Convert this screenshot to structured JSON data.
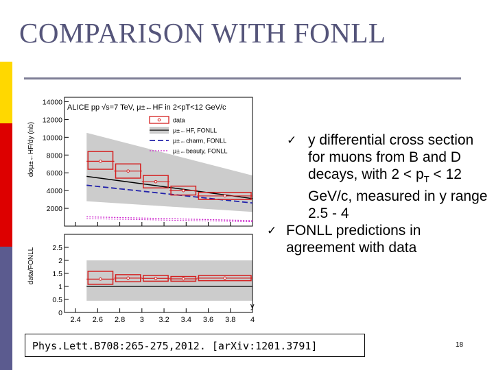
{
  "slide": {
    "title": "COMPARISON WITH FONLL",
    "sidebar_colors": [
      "#ffffff",
      "#ffd800",
      "#dd0000",
      "#5b5b8f"
    ],
    "bullets": [
      {
        "check": "✓",
        "parts": [
          "y differential cross section for muons from B and D decays, with 2 < p",
          "T",
          " < 12 GeV/c, measured in y range 2.5 - 4"
        ]
      },
      {
        "check": "✓",
        "parts": [
          "FONLL predictions in agreement with data",
          "",
          ""
        ]
      }
    ],
    "reference": "Phys.Lett.B708:265-275,2012. [arXiv:1201.3791]",
    "page_number": "18"
  },
  "chart_data": {
    "type": "line",
    "title": "ALICE pp √s=7 TeV, μ±←HF in 2<pT<12 GeV/c",
    "xlabel": "y",
    "colors": {
      "data": "#d42020",
      "hf": "#000000",
      "band": "#cccccc",
      "charm": "#2222aa",
      "beauty": "#cc22cc"
    },
    "upper": {
      "ylabel": "dσμ±←HF/dy (nb)",
      "ylim": [
        0,
        14500
      ],
      "yticks": [
        2000,
        4000,
        6000,
        8000,
        10000,
        12000,
        14000
      ],
      "ytick_labels": [
        "2000",
        "4000",
        "6000",
        "8000",
        "10000",
        "12000",
        "14000"
      ],
      "data": {
        "name": "data",
        "x_edges": [
          [
            2.5,
            2.75
          ],
          [
            2.75,
            3.0
          ],
          [
            3.0,
            3.25
          ],
          [
            3.25,
            3.5
          ],
          [
            3.5,
            4.0
          ]
        ],
        "y": [
          7300,
          6200,
          5000,
          4000,
          3400
        ],
        "sys_lo": [
          6400,
          5400,
          4300,
          3500,
          3000
        ],
        "sys_hi": [
          8400,
          7000,
          5700,
          4500,
          3800
        ]
      },
      "fonll_hf": {
        "name": "μ±←HF, FONLL",
        "x": [
          2.5,
          4.0
        ],
        "y": [
          5600,
          3100
        ]
      },
      "fonll_band": {
        "x": [
          2.5,
          4.0
        ],
        "lo": [
          2800,
          1600
        ],
        "hi": [
          10500,
          5700
        ]
      },
      "fonll_charm": {
        "name": "μ±←charm, FONLL",
        "x": [
          2.5,
          4.0
        ],
        "y": [
          4600,
          2600
        ]
      },
      "fonll_beauty": {
        "name": "μ±←beauty, FONLL",
        "x": [
          2.5,
          4.0
        ],
        "y": [
          1050,
          620
        ]
      }
    },
    "lower": {
      "ylabel": "data/FONLL",
      "ylim": [
        0,
        3
      ],
      "yticks": [
        0,
        0.5,
        1,
        1.5,
        2,
        2.5
      ],
      "ytick_labels": [
        "0",
        "0.5",
        "1",
        "1.5",
        "2",
        "2.5"
      ],
      "ratio": [
        1.28,
        1.32,
        1.31,
        1.29,
        1.32
      ],
      "ratio_sys_lo": [
        1.08,
        1.18,
        1.2,
        1.2,
        1.22
      ],
      "ratio_sys_hi": [
        1.58,
        1.45,
        1.42,
        1.38,
        1.42
      ],
      "band_lo": [
        0.45,
        0.45
      ],
      "band_hi": [
        2.0,
        2.0
      ]
    },
    "xlim": [
      2.3,
      4.0
    ],
    "xticks": [
      2.4,
      2.6,
      2.8,
      3.0,
      3.2,
      3.4,
      3.6,
      3.8,
      4.0
    ],
    "xtick_labels": [
      "2.4",
      "2.6",
      "2.8",
      "3",
      "3.2",
      "3.4",
      "3.6",
      "3.8",
      "4"
    ],
    "legend": {
      "placement": "top-right",
      "entries": [
        "data",
        "μ±←HF, FONLL",
        "μ±←charm, FONLL",
        "μ±←beauty, FONLL"
      ]
    }
  }
}
